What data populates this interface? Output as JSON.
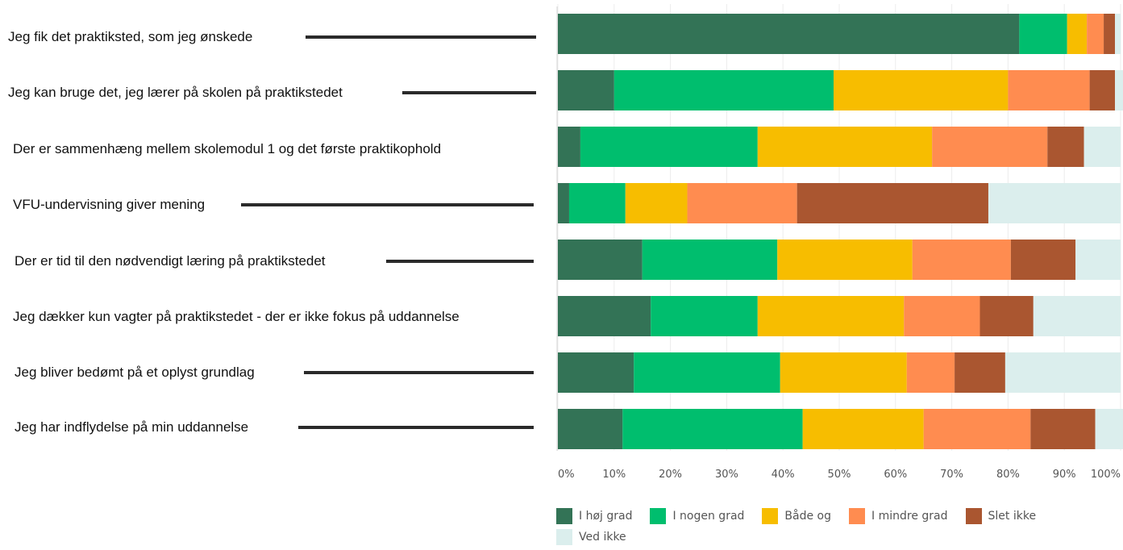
{
  "chart_data": {
    "type": "bar",
    "orientation": "horizontal",
    "stacked": true,
    "categories": [
      "Jeg fik det praktiksted, som jeg ønskede",
      "Jeg kan bruge det, jeg lærer på skolen på praktikstedet",
      "Der er sammenhæng mellem skolemodul 1 og det første praktikophold",
      "VFU-undervisning giver mening",
      "Der er tid til den nødvendigt læring på praktikstedet",
      "Jeg dækker kun vagter på praktikstedet - der er ikke fokus på uddannelse",
      "Jeg bliver bedømt på et oplyst grundlag",
      "Jeg har indflydelse på min uddannelse"
    ],
    "series": [
      {
        "name": "I høj grad",
        "color": "#337356",
        "values": [
          82,
          10,
          4,
          2,
          15,
          16.5,
          13.5,
          11.5
        ]
      },
      {
        "name": "I nogen grad",
        "color": "#00be6e",
        "values": [
          8.5,
          39,
          31.5,
          10,
          24,
          19,
          26,
          32
        ]
      },
      {
        "name": "Både og",
        "color": "#f7bd00",
        "values": [
          3.5,
          31,
          31,
          11,
          24,
          26,
          22.5,
          21.5
        ]
      },
      {
        "name": "I mindre grad",
        "color": "#ff8c50",
        "values": [
          3,
          14.5,
          20.5,
          19.5,
          17.5,
          13.5,
          8.5,
          19
        ]
      },
      {
        "name": "Slet ikke",
        "color": "#aa5630",
        "values": [
          2,
          4.5,
          6.5,
          34,
          11.5,
          9.5,
          9,
          11.5
        ]
      },
      {
        "name": "Ved ikke",
        "color": "#dbeeed",
        "values": [
          1,
          1.5,
          6.5,
          23.5,
          8,
          15.5,
          20.5,
          5
        ]
      }
    ],
    "xlim": [
      0,
      100
    ],
    "xticks": [
      "0%",
      "10%",
      "20%",
      "30%",
      "40%",
      "50%",
      "60%",
      "70%",
      "80%",
      "90%",
      "100%"
    ],
    "legend_position": "bottom",
    "grid": true
  }
}
